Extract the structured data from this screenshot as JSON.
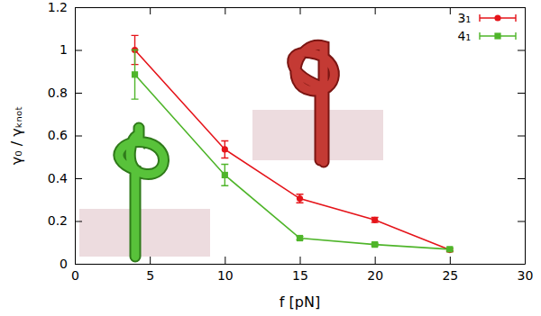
{
  "chart_data": {
    "type": "line",
    "x_label": "f [pN]",
    "y_label": "γ₀ / γₖₙₒₜ",
    "x": [
      4,
      10,
      15,
      20,
      25
    ],
    "series": [
      {
        "name": "3₁",
        "color": "#e5141a",
        "marker": "circle",
        "line_style": "solid",
        "values": [
          1.0,
          0.535,
          0.305,
          0.205,
          0.065
        ],
        "errors": [
          0.068,
          0.04,
          0.02,
          0.012,
          0.008
        ]
      },
      {
        "name": "4₁",
        "color": "#4fb52a",
        "marker": "square",
        "line_style": "solid",
        "values": [
          0.885,
          0.415,
          0.12,
          0.09,
          0.068
        ],
        "errors": [
          0.115,
          0.05,
          0.008,
          0.006,
          0.006
        ]
      }
    ],
    "xlim": [
      0,
      30
    ],
    "xticks": [
      0,
      5,
      10,
      15,
      20,
      25,
      30
    ],
    "ylim": [
      0,
      1.2
    ],
    "yticks": [
      0,
      0.2,
      0.4,
      0.6,
      0.8,
      1,
      1.2
    ],
    "grid": false,
    "legend": "top-right"
  }
}
